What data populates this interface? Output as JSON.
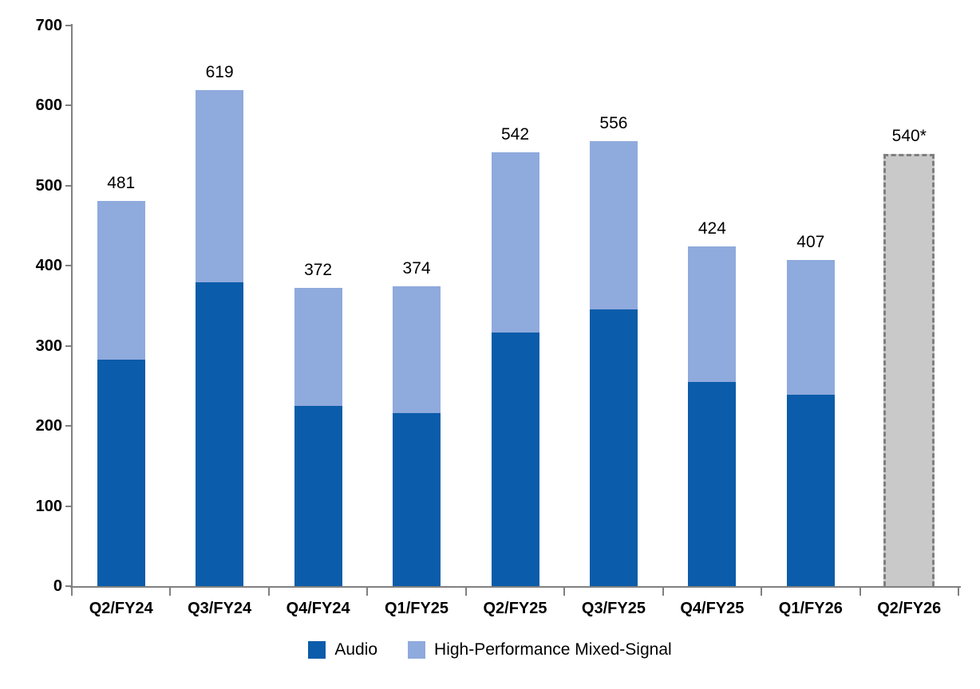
{
  "chart_data": {
    "type": "bar",
    "stacked": true,
    "title": "",
    "xlabel": "",
    "ylabel": "",
    "ylim": [
      0,
      700
    ],
    "yticks": [
      0,
      100,
      200,
      300,
      400,
      500,
      600,
      700
    ],
    "grid": false,
    "legend_position": "bottom",
    "categories": [
      "Q2/FY24",
      "Q3/FY24",
      "Q4/FY24",
      "Q1/FY25",
      "Q2/FY25",
      "Q3/FY25",
      "Q4/FY25",
      "Q1/FY26",
      "Q2/FY26"
    ],
    "series": [
      {
        "name": "Audio",
        "color": "#0b5caa",
        "values": [
          283,
          379,
          225,
          216,
          317,
          346,
          255,
          239,
          null
        ]
      },
      {
        "name": "High-Performance Mixed-Signal",
        "color": "#8faadd",
        "values": [
          198,
          240,
          147,
          158,
          225,
          210,
          169,
          168,
          null
        ]
      }
    ],
    "total_labels": [
      "481",
      "619",
      "372",
      "374",
      "542",
      "556",
      "424",
      "407",
      "540*"
    ],
    "totals": [
      481,
      619,
      372,
      374,
      542,
      556,
      424,
      407,
      540
    ],
    "forecast": {
      "category": "Q2/FY26",
      "value": 540,
      "label": "540*",
      "fill_color": "#c9c9c9",
      "border_color": "#7f7f7f",
      "border_style": "dashed"
    },
    "colors": {
      "axis": "#808080",
      "text": "#000000"
    }
  }
}
